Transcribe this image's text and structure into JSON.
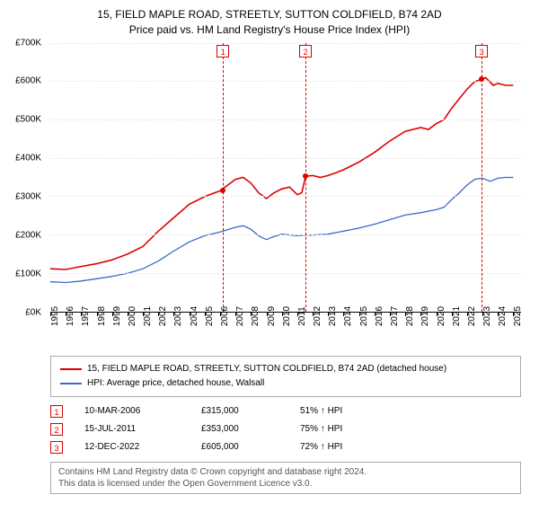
{
  "title_line1": "15, FIELD MAPLE ROAD, STREETLY, SUTTON COLDFIELD, B74 2AD",
  "title_line2": "Price paid vs. HM Land Registry's House Price Index (HPI)",
  "chart": {
    "type": "line",
    "x_range": [
      1995,
      2025.5
    ],
    "y_range": [
      0,
      700
    ],
    "y_prefix": "£",
    "y_suffix": "K",
    "y_ticks": [
      0,
      100,
      200,
      300,
      400,
      500,
      600,
      700
    ],
    "x_ticks": [
      1995,
      1996,
      1997,
      1998,
      1999,
      2000,
      2001,
      2002,
      2003,
      2004,
      2005,
      2006,
      2007,
      2008,
      2009,
      2010,
      2011,
      2012,
      2013,
      2014,
      2015,
      2016,
      2017,
      2018,
      2019,
      2020,
      2021,
      2022,
      2023,
      2024,
      2025
    ],
    "grid_color": "#e8e8e8",
    "background_color": "#ffffff",
    "series": [
      {
        "name": "property",
        "label": "15, FIELD MAPLE ROAD, STREETLY, SUTTON COLDFIELD, B74 2AD (detached house)",
        "color": "#dd0000",
        "width": 1.6,
        "data": [
          [
            1995,
            112
          ],
          [
            1996,
            110
          ],
          [
            1997,
            118
          ],
          [
            1998,
            125
          ],
          [
            1999,
            135
          ],
          [
            2000,
            150
          ],
          [
            2001,
            170
          ],
          [
            2002,
            210
          ],
          [
            2003,
            245
          ],
          [
            2004,
            280
          ],
          [
            2005,
            300
          ],
          [
            2006,
            315
          ],
          [
            2006.5,
            330
          ],
          [
            2007,
            345
          ],
          [
            2007.5,
            350
          ],
          [
            2008,
            335
          ],
          [
            2008.5,
            310
          ],
          [
            2009,
            295
          ],
          [
            2009.5,
            310
          ],
          [
            2010,
            320
          ],
          [
            2010.5,
            325
          ],
          [
            2011,
            305
          ],
          [
            2011.3,
            310
          ],
          [
            2011.54,
            353
          ],
          [
            2012,
            355
          ],
          [
            2012.5,
            350
          ],
          [
            2013,
            355
          ],
          [
            2013.5,
            362
          ],
          [
            2014,
            370
          ],
          [
            2015,
            390
          ],
          [
            2016,
            415
          ],
          [
            2017,
            445
          ],
          [
            2018,
            470
          ],
          [
            2019,
            480
          ],
          [
            2019.5,
            475
          ],
          [
            2020,
            490
          ],
          [
            2020.5,
            500
          ],
          [
            2021,
            530
          ],
          [
            2021.5,
            555
          ],
          [
            2022,
            580
          ],
          [
            2022.5,
            600
          ],
          [
            2022.95,
            605
          ],
          [
            2023.2,
            610
          ],
          [
            2023.7,
            590
          ],
          [
            2024,
            595
          ],
          [
            2024.5,
            590
          ],
          [
            2025,
            590
          ]
        ]
      },
      {
        "name": "hpi",
        "label": "HPI: Average price, detached house, Walsall",
        "color": "#3a6bc6",
        "width": 1.3,
        "data": [
          [
            1995,
            78
          ],
          [
            1996,
            76
          ],
          [
            1997,
            80
          ],
          [
            1998,
            86
          ],
          [
            1999,
            92
          ],
          [
            2000,
            100
          ],
          [
            2001,
            112
          ],
          [
            2002,
            132
          ],
          [
            2003,
            158
          ],
          [
            2004,
            182
          ],
          [
            2005,
            198
          ],
          [
            2006,
            208
          ],
          [
            2007,
            220
          ],
          [
            2007.5,
            224
          ],
          [
            2008,
            215
          ],
          [
            2008.5,
            198
          ],
          [
            2009,
            188
          ],
          [
            2009.5,
            196
          ],
          [
            2010,
            202
          ],
          [
            2011,
            198
          ],
          [
            2011.5,
            200
          ],
          [
            2012,
            200
          ],
          [
            2013,
            202
          ],
          [
            2014,
            210
          ],
          [
            2015,
            218
          ],
          [
            2016,
            228
          ],
          [
            2017,
            240
          ],
          [
            2018,
            252
          ],
          [
            2019,
            258
          ],
          [
            2020,
            266
          ],
          [
            2020.5,
            272
          ],
          [
            2021,
            292
          ],
          [
            2021.5,
            310
          ],
          [
            2022,
            330
          ],
          [
            2022.5,
            345
          ],
          [
            2023,
            348
          ],
          [
            2023.5,
            340
          ],
          [
            2024,
            348
          ],
          [
            2024.5,
            350
          ],
          [
            2025,
            350
          ]
        ]
      }
    ],
    "sales": [
      {
        "n": "1",
        "date": "10-MAR-2006",
        "x": 2006.19,
        "price_k": 315,
        "price_str": "£315,000",
        "hpi_str": "51% ↑ HPI"
      },
      {
        "n": "2",
        "date": "15-JUL-2011",
        "x": 2011.54,
        "price_k": 353,
        "price_str": "£353,000",
        "hpi_str": "75% ↑ HPI"
      },
      {
        "n": "3",
        "date": "12-DEC-2022",
        "x": 2022.95,
        "price_k": 605,
        "price_str": "£605,000",
        "hpi_str": "72% ↑ HPI"
      }
    ]
  },
  "attribution_line1": "Contains HM Land Registry data © Crown copyright and database right 2024.",
  "attribution_line2": "This data is licensed under the Open Government Licence v3.0."
}
